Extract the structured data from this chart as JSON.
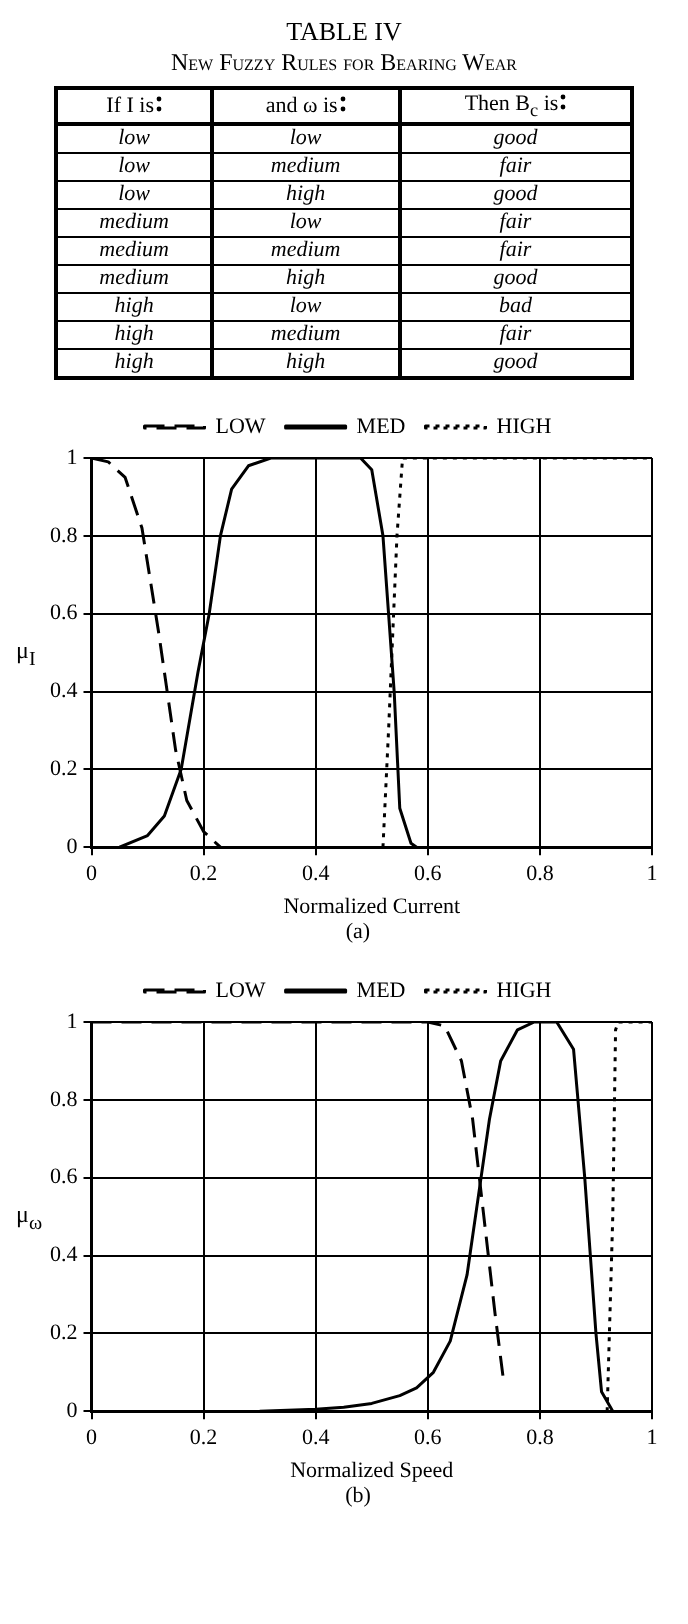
{
  "chart_data": [
    {
      "type": "other",
      "title": "TABLE IV",
      "subtitle": "New Fuzzy Rules for Bearing Wear",
      "categories": [
        "If I is",
        "and ω is",
        "Then B$_{c}$ is"
      ],
      "annotations": [
        "low",
        "low",
        "good",
        "low",
        "medium",
        "fair",
        "low",
        "high",
        "good",
        "medium",
        "low",
        "fair",
        "medium",
        "medium",
        "fair",
        "medium",
        "high",
        "good",
        "high",
        "low",
        "bad",
        "high",
        "medium",
        "fair",
        "high",
        "high",
        "good"
      ]
    },
    {
      "type": "line",
      "xlabel": "Normalized Current",
      "ylabel": "μ$_{I}$",
      "annotations": [
        "(a)"
      ],
      "xlim": [
        0,
        1
      ],
      "ylim": [
        0,
        1
      ],
      "xticks": [
        0,
        0.2,
        0.4,
        0.6,
        0.8,
        1
      ],
      "yticks": [
        0,
        0.2,
        0.4,
        0.6,
        0.8,
        1
      ],
      "grid": true,
      "legend": "top",
      "marker": "none",
      "series": [
        {
          "name": "LOW",
          "color": "#000000",
          "line_style": "dashed",
          "x": [
            0,
            0.03,
            0.06,
            0.09,
            0.12,
            0.15,
            0.17,
            0.2,
            0.23
          ],
          "values": [
            1,
            0.99,
            0.95,
            0.82,
            0.55,
            0.25,
            0.12,
            0.04,
            0
          ]
        },
        {
          "name": "MED",
          "color": "#000000",
          "line_style": "solid",
          "x": [
            0.05,
            0.1,
            0.13,
            0.16,
            0.19,
            0.21,
            0.23,
            0.25,
            0.28,
            0.32,
            0.48,
            0.5,
            0.52,
            0.53,
            0.54,
            0.55,
            0.57,
            0.58
          ],
          "values": [
            0,
            0.03,
            0.08,
            0.2,
            0.45,
            0.6,
            0.8,
            0.92,
            0.98,
            1,
            1,
            0.97,
            0.8,
            0.6,
            0.4,
            0.1,
            0.01,
            0
          ]
        },
        {
          "name": "HIGH",
          "color": "#000000",
          "line_style": "dotted",
          "x": [
            0.52,
            0.53,
            0.545,
            0.555,
            0.6,
            1
          ],
          "values": [
            0,
            0.3,
            0.8,
            1,
            1,
            1
          ]
        }
      ]
    },
    {
      "type": "line",
      "xlabel": "Normalized Speed",
      "ylabel": "μ$_{ω}$",
      "annotations": [
        "(b)"
      ],
      "xlim": [
        0,
        1
      ],
      "ylim": [
        0,
        1
      ],
      "xticks": [
        0,
        0.2,
        0.4,
        0.6,
        0.8,
        1
      ],
      "yticks": [
        0,
        0.2,
        0.4,
        0.6,
        0.8,
        1
      ],
      "grid": true,
      "legend": "top",
      "marker": "none",
      "series": [
        {
          "name": "LOW",
          "color": "#000000",
          "line_style": "dashed",
          "x": [
            0,
            0.6,
            0.63,
            0.66,
            0.68,
            0.7,
            0.72,
            0.735
          ],
          "values": [
            1,
            1,
            0.99,
            0.9,
            0.75,
            0.5,
            0.25,
            0.08
          ]
        },
        {
          "name": "MED",
          "color": "#000000",
          "line_style": "solid",
          "x": [
            0.3,
            0.4,
            0.45,
            0.5,
            0.55,
            0.58,
            0.61,
            0.64,
            0.67,
            0.69,
            0.71,
            0.73,
            0.76,
            0.79,
            0.83,
            0.86,
            0.88,
            0.9,
            0.91,
            0.93
          ],
          "values": [
            0,
            0.005,
            0.01,
            0.02,
            0.04,
            0.06,
            0.1,
            0.18,
            0.35,
            0.55,
            0.75,
            0.9,
            0.98,
            1,
            1,
            0.93,
            0.6,
            0.2,
            0.05,
            0
          ]
        },
        {
          "name": "HIGH",
          "color": "#000000",
          "line_style": "dotted",
          "x": [
            0.92,
            0.93,
            0.935,
            0.94,
            1
          ],
          "values": [
            0,
            0.5,
            0.98,
            1,
            1
          ]
        }
      ]
    }
  ]
}
